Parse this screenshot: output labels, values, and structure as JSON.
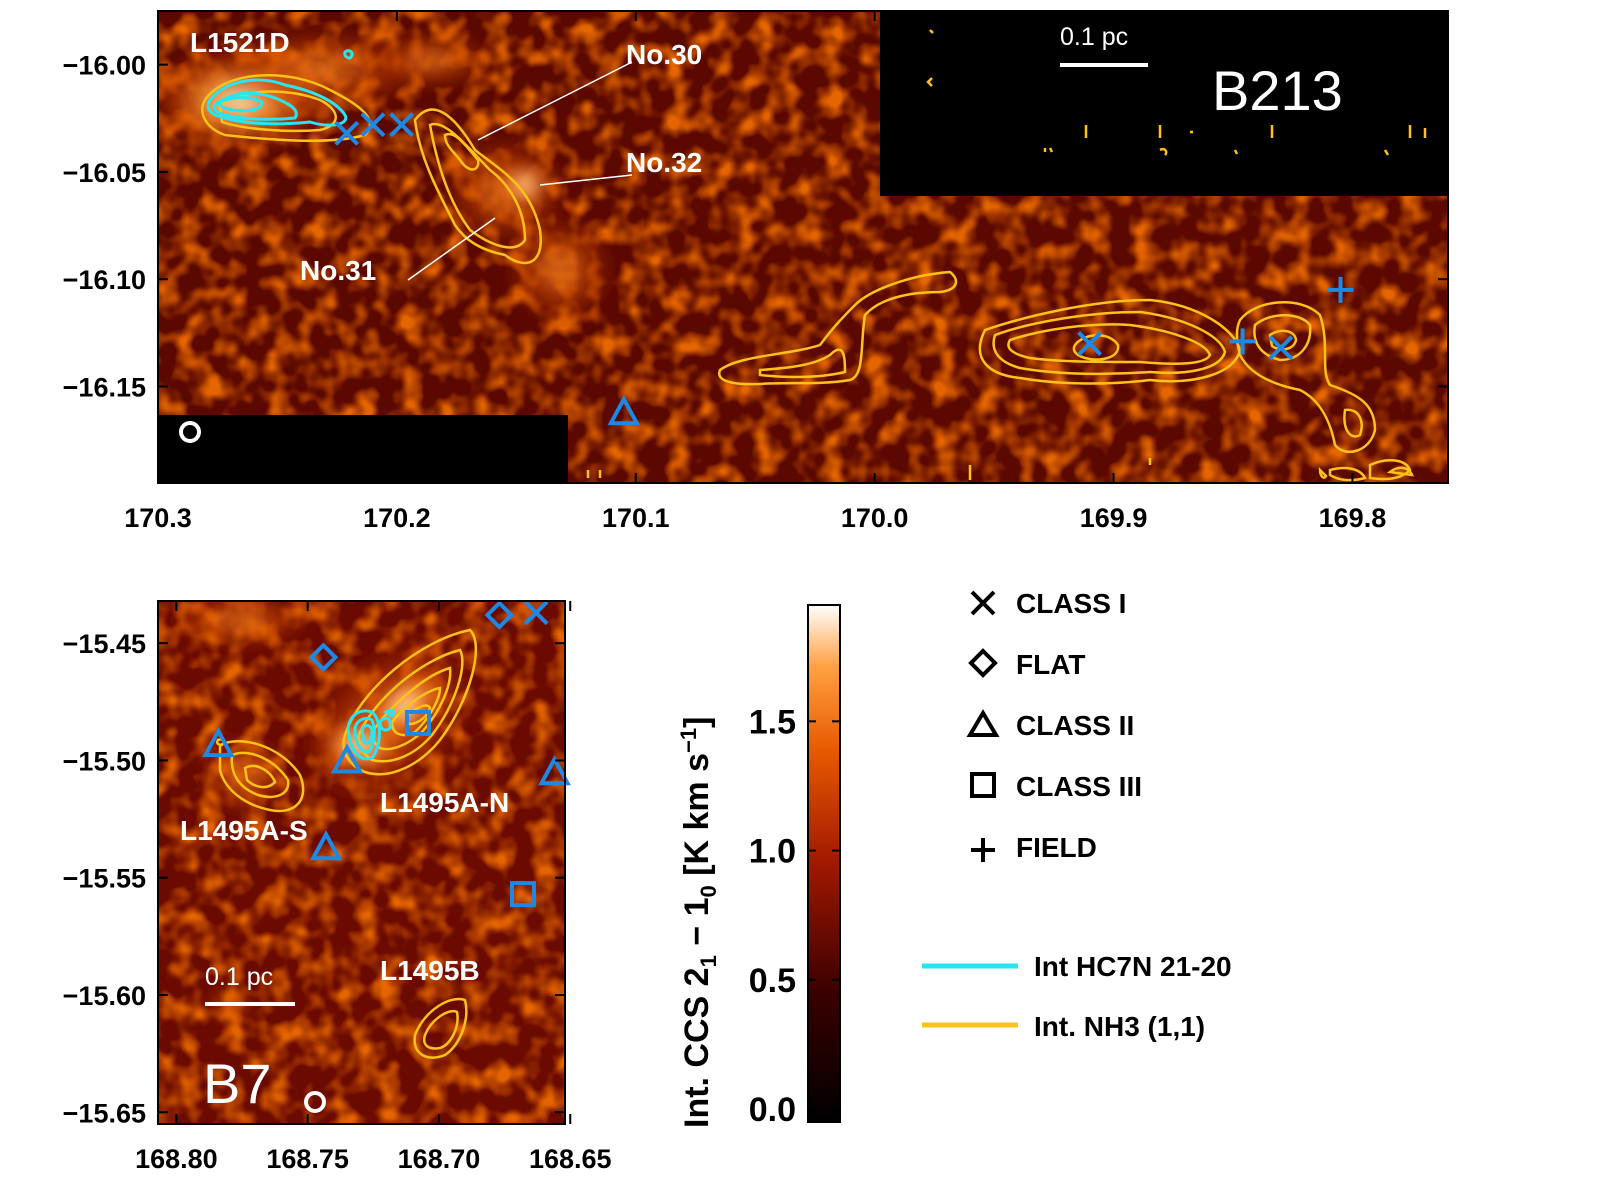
{
  "colors": {
    "nh3": "#ffc21a",
    "hc7n": "#27e6f2",
    "yso": "#1e88e5",
    "text": "#000000",
    "label": "#ffffff"
  },
  "chart_data": [
    {
      "panel": "B213",
      "type": "heatmap",
      "title": "B213",
      "xlim": [
        170.3,
        169.76
      ],
      "ylim": [
        -16.195,
        -15.975
      ],
      "x_ticks": [
        170.3,
        170.2,
        170.1,
        170.0,
        169.9,
        169.8
      ],
      "x_tick_labels": [
        "170.3",
        "170.2",
        "170.1",
        "170.0",
        "169.9",
        "169.8"
      ],
      "y_ticks": [
        -16.0,
        -16.05,
        -16.1,
        -16.15
      ],
      "y_tick_labels": [
        "−16.00",
        "−16.05",
        "−16.10",
        "−16.15"
      ],
      "scale_bar": "0.1 pc",
      "labels": [
        {
          "text": "L1521D",
          "x": 170.285,
          "y": -15.985
        },
        {
          "text": "No.30",
          "x": 170.105,
          "y": -15.995
        },
        {
          "text": "No.32",
          "x": 170.105,
          "y": -16.045
        },
        {
          "text": "No.31",
          "x": 170.18,
          "y": -16.095
        }
      ],
      "sources": [
        {
          "class": "CLASS I",
          "x": 170.221,
          "y": -16.032
        },
        {
          "class": "CLASS I",
          "x": 170.21,
          "y": -16.028
        },
        {
          "class": "CLASS I",
          "x": 170.198,
          "y": -16.028
        },
        {
          "class": "CLASS I",
          "x": 169.91,
          "y": -16.13
        },
        {
          "class": "CLASS I",
          "x": 169.83,
          "y": -16.132
        },
        {
          "class": "FIELD",
          "x": 169.846,
          "y": -16.129
        },
        {
          "class": "FIELD",
          "x": 169.805,
          "y": -16.105
        },
        {
          "class": "CLASS II",
          "x": 170.105,
          "y": -16.162
        }
      ]
    },
    {
      "panel": "B7",
      "type": "heatmap",
      "title": "B7",
      "xlim": [
        168.807,
        168.652
      ],
      "ylim": [
        -15.655,
        -15.432
      ],
      "x_ticks": [
        168.8,
        168.75,
        168.7,
        168.65
      ],
      "x_tick_labels": [
        "168.80",
        "168.75",
        "168.70",
        "168.65"
      ],
      "y_ticks": [
        -15.45,
        -15.5,
        -15.55,
        -15.6,
        -15.65
      ],
      "y_tick_labels": [
        "−15.45",
        "−15.50",
        "−15.55",
        "−15.60",
        "−15.65"
      ],
      "scale_bar": "0.1 pc",
      "labels": [
        {
          "text": "L1495A-S",
          "x": 168.795,
          "y": -15.52
        },
        {
          "text": "L1495A-N",
          "x": 168.73,
          "y": -15.516
        },
        {
          "text": "L1495B",
          "x": 168.73,
          "y": -15.586
        }
      ],
      "sources": [
        {
          "class": "CLASS I",
          "x": 168.663,
          "y": -15.437
        },
        {
          "class": "FLAT",
          "x": 168.677,
          "y": -15.438
        },
        {
          "class": "FLAT",
          "x": 168.744,
          "y": -15.456
        },
        {
          "class": "CLASS III",
          "x": 168.708,
          "y": -15.484
        },
        {
          "class": "CLASS III",
          "x": 168.668,
          "y": -15.557
        },
        {
          "class": "CLASS II",
          "x": 168.784,
          "y": -15.493
        },
        {
          "class": "CLASS II",
          "x": 168.735,
          "y": -15.5
        },
        {
          "class": "CLASS II",
          "x": 168.743,
          "y": -15.537
        },
        {
          "class": "CLASS II",
          "x": 168.656,
          "y": -15.505
        }
      ]
    }
  ],
  "colorbar": {
    "label_main": "Int. CCS 2",
    "label_sub1": "1",
    "label_mid": " − 1",
    "label_sub2": "0",
    "label_unit": " [K km s",
    "label_sup": "−1",
    "label_end": "]",
    "range": [
      -0.05,
      1.95
    ],
    "ticks": [
      0.0,
      0.5,
      1.0,
      1.5
    ],
    "tick_labels": [
      "0.0",
      "0.5",
      "1.0",
      "1.5"
    ]
  },
  "legend": {
    "markers": [
      {
        "symbol": "x",
        "label": "CLASS I"
      },
      {
        "symbol": "diamond",
        "label": "FLAT"
      },
      {
        "symbol": "triangle",
        "label": "CLASS II"
      },
      {
        "symbol": "square",
        "label": "CLASS III"
      },
      {
        "symbol": "plus",
        "label": "FIELD"
      }
    ],
    "lines": [
      {
        "color": "#27e6f2",
        "label": "Int HC7N 21-20"
      },
      {
        "color": "#ffc21a",
        "label": "Int. NH3 (1,1)"
      }
    ]
  }
}
